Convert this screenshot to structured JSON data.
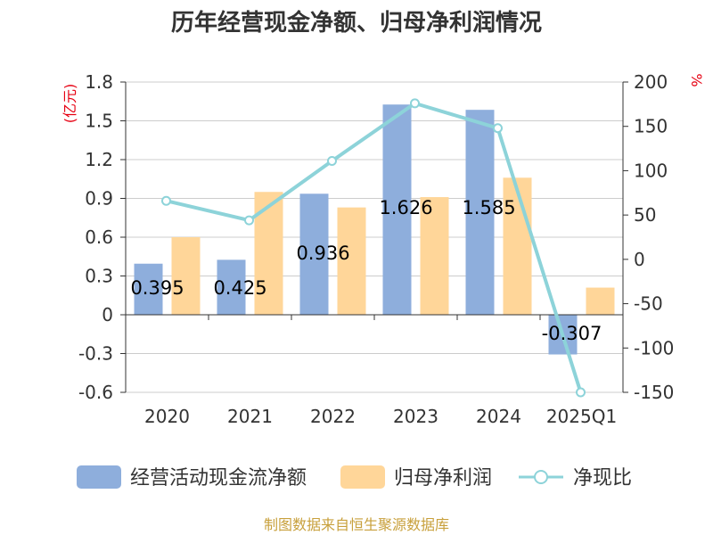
{
  "chart_data": {
    "type": "bar",
    "title": "历年经营现金净额、归母净利润情况",
    "categories": [
      "2020",
      "2021",
      "2022",
      "2023",
      "2024",
      "2025Q1"
    ],
    "y_left": {
      "unit": "(亿元)",
      "ylim": [
        -0.6,
        1.8
      ],
      "ticks": [
        "1.8",
        "1.5",
        "1.2",
        "0.9",
        "0.6",
        "0.3",
        "0",
        "-0.3",
        "-0.6"
      ]
    },
    "y_right": {
      "unit": "%",
      "ylim": [
        -150,
        200
      ],
      "ticks": [
        "200",
        "150",
        "100",
        "50",
        "0",
        "-50",
        "-100",
        "-150"
      ]
    },
    "series": [
      {
        "name": "经营活动现金流净额",
        "kind": "bar",
        "axis": "left",
        "color": "#8EAEDC",
        "values": [
          0.395,
          0.425,
          0.936,
          1.626,
          1.585,
          -0.307
        ],
        "labels": [
          "0.395",
          "0.425",
          "0.936",
          "1.626",
          "1.585",
          "-0.307"
        ]
      },
      {
        "name": "归母净利润",
        "kind": "bar",
        "axis": "left",
        "color": "#FFD699",
        "values": [
          0.6,
          0.95,
          0.83,
          0.91,
          1.06,
          0.21
        ]
      },
      {
        "name": "净现比",
        "kind": "line",
        "axis": "right",
        "color": "#8DD3D9",
        "values": [
          66,
          44,
          111,
          176,
          148,
          -150
        ]
      }
    ],
    "grid": true,
    "legend_position": "bottom"
  },
  "footer": {
    "source": "制图数据来自恒生聚源数据库",
    "source_color": "#C8A03C"
  },
  "colors": {
    "unit_red": "#E60012",
    "axis": "#333333",
    "grid": "#CCCCCC"
  }
}
